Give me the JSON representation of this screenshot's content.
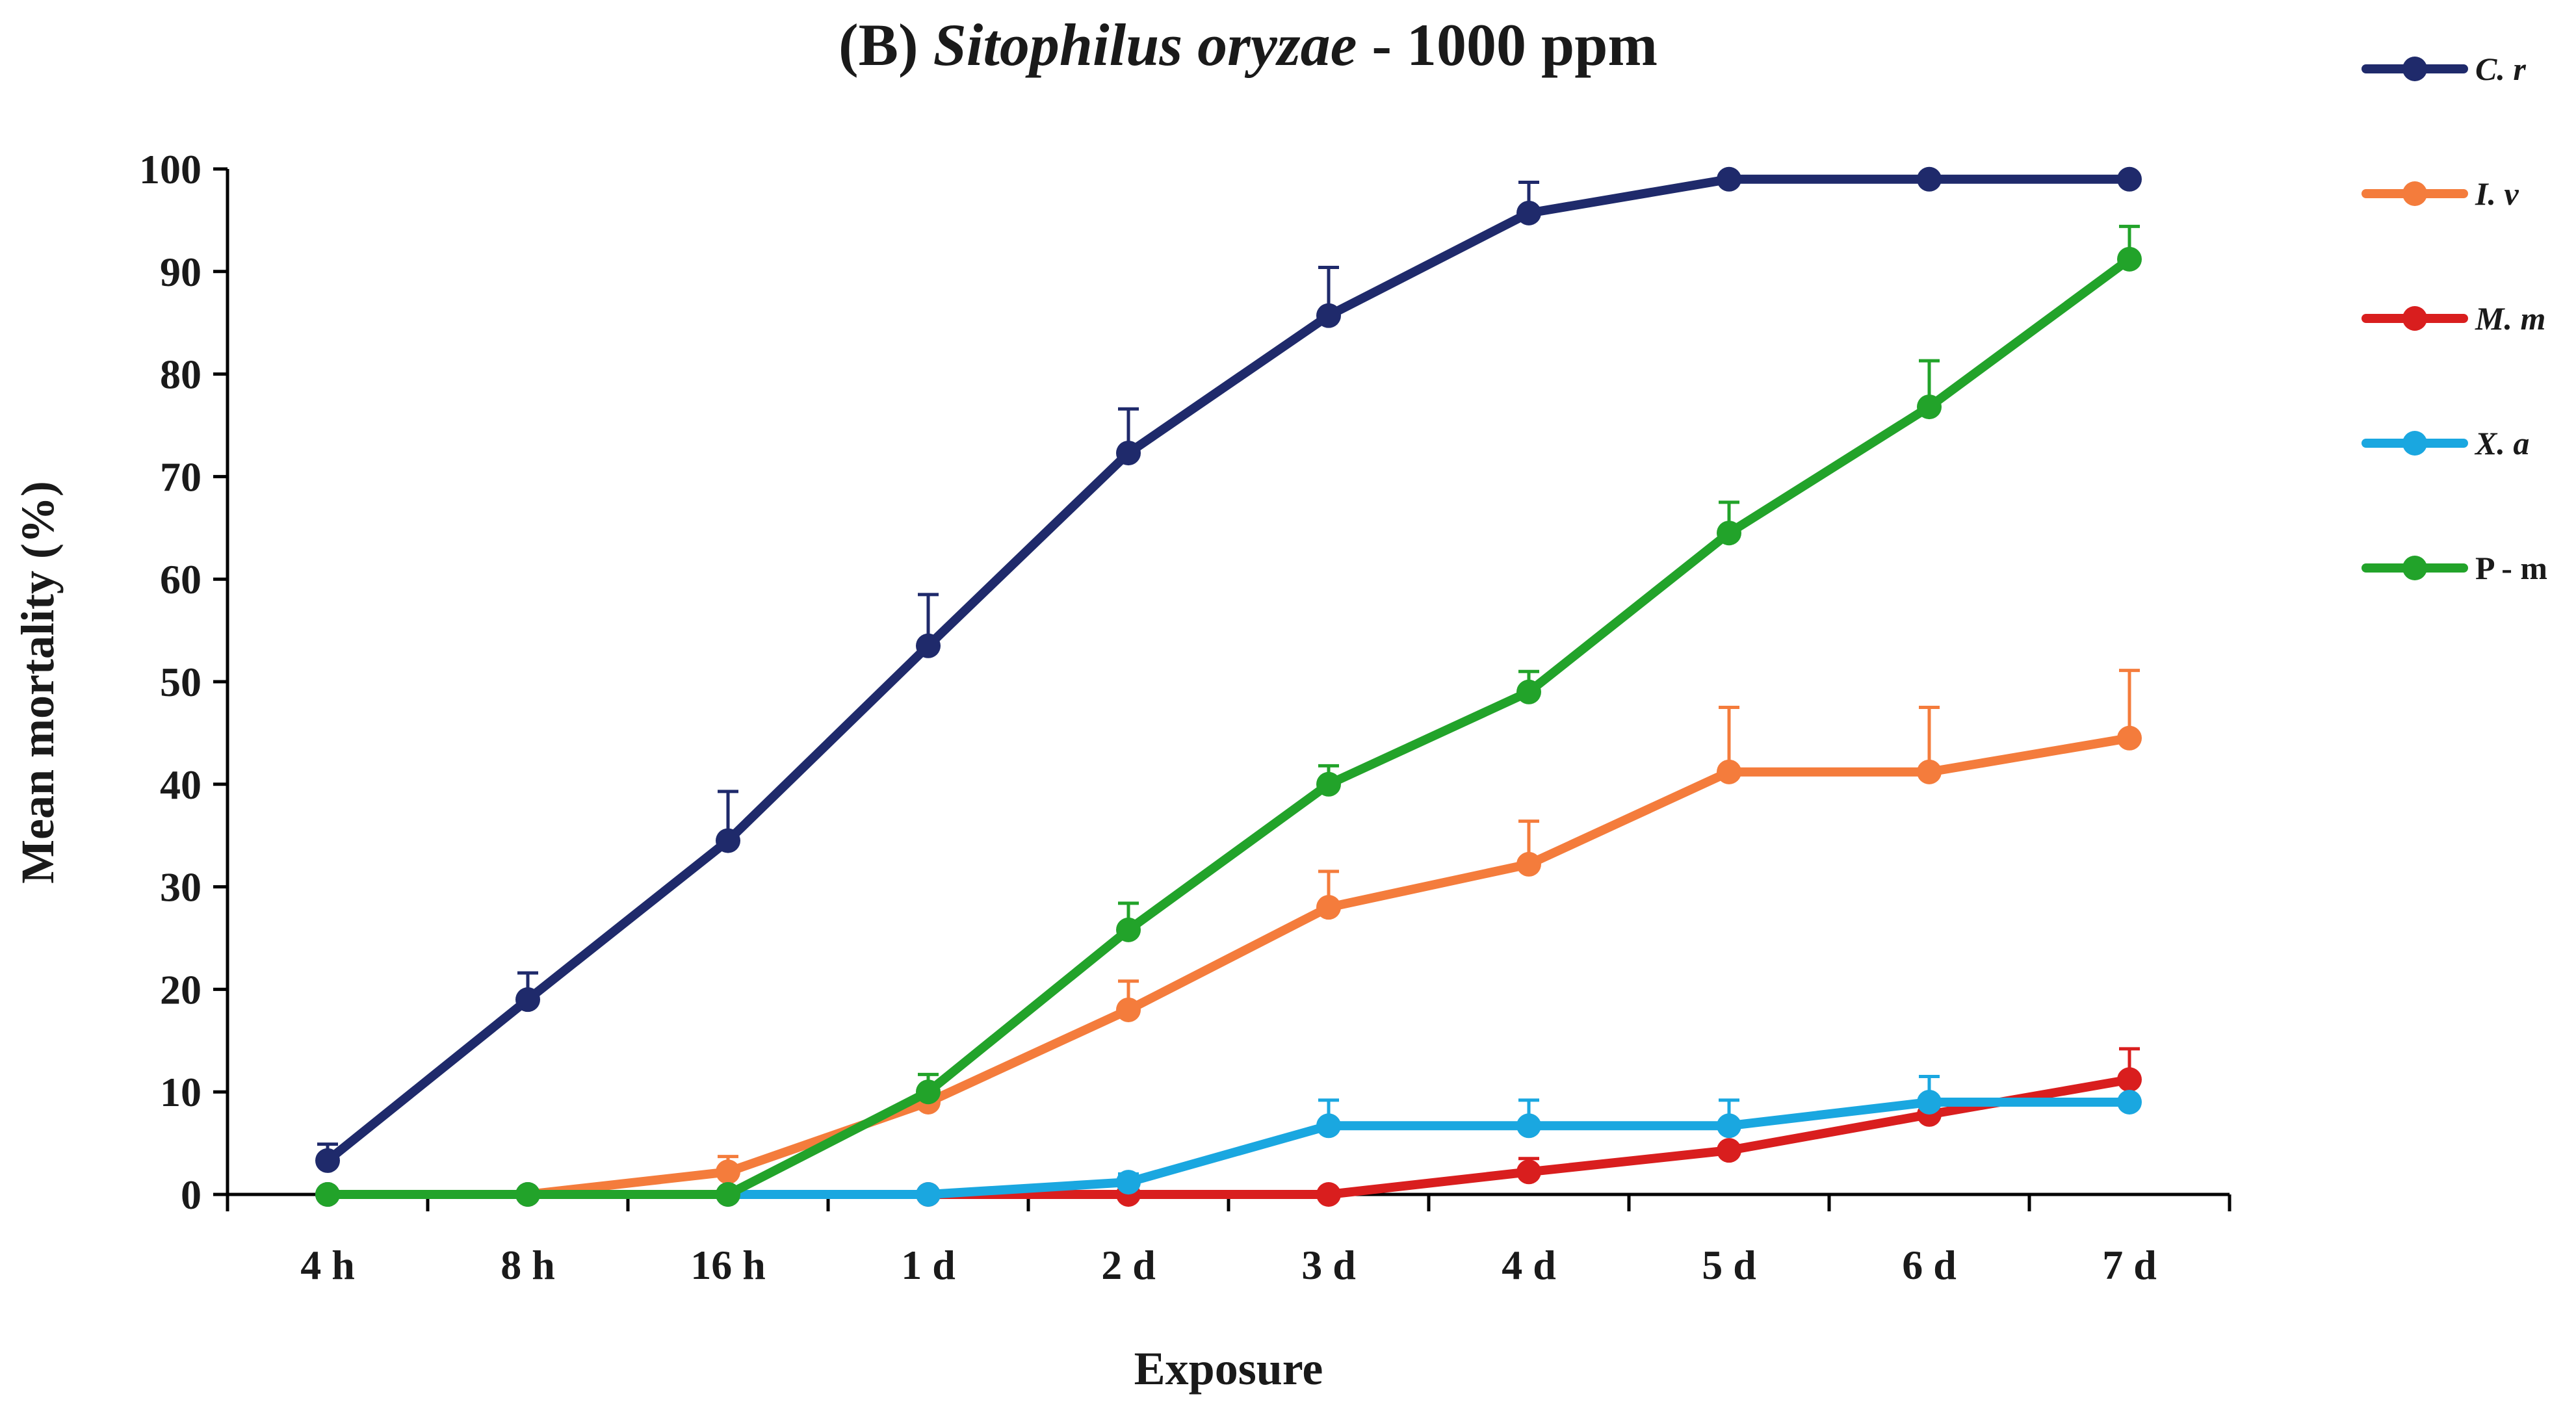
{
  "chart_data": {
    "type": "line",
    "title_prefix": "(B) ",
    "title_species": "Sitophilus oryzae",
    "title_suffix": " - 1000 ppm",
    "xlabel": "Exposure",
    "ylabel": "Mean mortality (%)",
    "ylim": [
      0,
      100
    ],
    "yticks": [
      0,
      10,
      20,
      30,
      40,
      50,
      60,
      70,
      80,
      90,
      100
    ],
    "categories": [
      "4 h",
      "8 h",
      "16 h",
      "1 d",
      "2 d",
      "3 d",
      "4 d",
      "5 d",
      "6 d",
      "7 d"
    ],
    "legend_position": "right",
    "series": [
      {
        "name": "C. r",
        "italic": true,
        "color": "#1f2a6b",
        "values": [
          3.3,
          19,
          34.5,
          53.5,
          72.3,
          85.7,
          95.7,
          99,
          99,
          99
        ],
        "errors": [
          1.6,
          2.6,
          4.8,
          5,
          4.3,
          4.7,
          3,
          0,
          0,
          0
        ]
      },
      {
        "name": "I. v",
        "italic": true,
        "color": "#f47c3c",
        "values": [
          0,
          0,
          2.2,
          9,
          18,
          28,
          32.2,
          41.2,
          41.2,
          44.5
        ],
        "errors": [
          0,
          0,
          1.5,
          0,
          2.8,
          3.5,
          4.2,
          6.3,
          6.3,
          6.6
        ]
      },
      {
        "name": "M. m",
        "italic": true,
        "color": "#d91e1e",
        "values": [
          0,
          0,
          0,
          0,
          0,
          0,
          2.2,
          4.3,
          7.8,
          11.2
        ],
        "errors": [
          0,
          0,
          0,
          0,
          0,
          0,
          1.3,
          0,
          1.6,
          3
        ]
      },
      {
        "name": "X. a",
        "italic": true,
        "color": "#1aa7e0",
        "values": [
          0,
          0,
          0,
          0,
          1.2,
          6.7,
          6.7,
          6.7,
          9,
          9
        ],
        "errors": [
          0,
          0,
          0,
          0,
          0.8,
          2.5,
          2.5,
          2.5,
          2.5,
          0
        ]
      },
      {
        "name": "P - m",
        "italic": false,
        "color": "#22a32a",
        "values": [
          0,
          0,
          0,
          10,
          25.8,
          40,
          49,
          64.5,
          76.8,
          91.2
        ],
        "errors": [
          0,
          0,
          0,
          1.7,
          2.6,
          1.8,
          2,
          3,
          4.5,
          3.2
        ]
      }
    ]
  }
}
